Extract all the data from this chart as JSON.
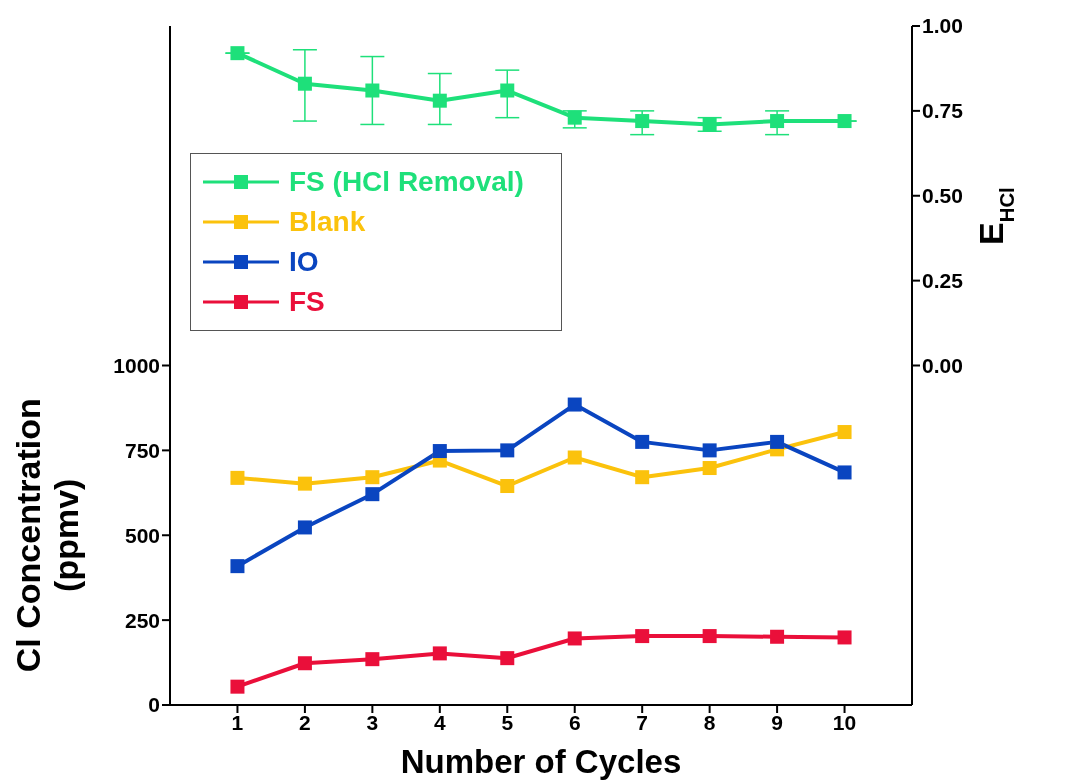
{
  "chart_data": {
    "type": "line",
    "xlabel": "Number of Cycles",
    "ylabel": "Cl Concentration (ppmv)",
    "y2label": "E$_{HCl}$",
    "x": [
      1,
      2,
      3,
      4,
      5,
      6,
      7,
      8,
      9,
      10
    ],
    "series": [
      {
        "name": "FS (HCl Removal)",
        "color": "#1ee07a",
        "axis": "y2",
        "values": [
          0.92,
          0.83,
          0.81,
          0.78,
          0.81,
          0.73,
          0.72,
          0.71,
          0.72,
          0.72
        ],
        "errors": [
          null,
          [
            0.72,
            0.93
          ],
          [
            0.71,
            0.91
          ],
          [
            0.71,
            0.86
          ],
          [
            0.73,
            0.87
          ],
          [
            0.7,
            0.75
          ],
          [
            0.68,
            0.75
          ],
          [
            0.69,
            0.73
          ],
          [
            0.68,
            0.75
          ],
          null
        ]
      },
      {
        "name": "Blank",
        "color": "#fbc20c",
        "values": [
          669,
          652,
          671,
          720,
          645,
          729,
          671,
          698,
          753,
          804
        ]
      },
      {
        "name": "IO",
        "color": "#0a45c0",
        "values": [
          409,
          523,
          621,
          748,
          750,
          885,
          775,
          750,
          775,
          685
        ]
      },
      {
        "name": "FS",
        "color": "#ea0f3a",
        "values": [
          54,
          123,
          135,
          152,
          138,
          196,
          203,
          203,
          201,
          199
        ]
      }
    ],
    "xlim": [
      0,
      11
    ],
    "xticks": [
      1,
      2,
      3,
      4,
      5,
      6,
      7,
      8,
      9,
      10
    ],
    "ylim": [
      0,
      2000
    ],
    "yticks": [
      0,
      250,
      500,
      750,
      1000
    ],
    "y2lim": [
      -1,
      1
    ],
    "y2ticks": [
      {
        "value": 0,
        "label": "0.00"
      },
      {
        "value": 0.25,
        "label": "0.25"
      },
      {
        "value": 0.5,
        "label": "0.50"
      },
      {
        "value": 0.75,
        "label": "0.75"
      },
      {
        "value": 1,
        "label": "1.00"
      }
    ],
    "marker": "square",
    "line_style": "solid",
    "grid": false,
    "legend": "top left"
  }
}
